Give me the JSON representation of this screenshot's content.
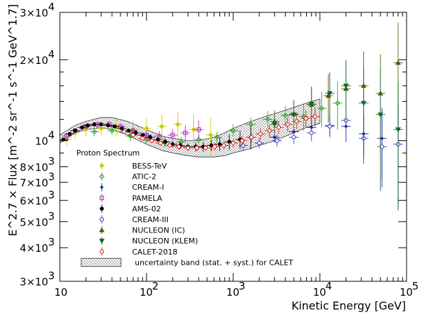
{
  "chart_data": {
    "type": "scatter",
    "title": "",
    "xlabel": "Kinetic Energy [GeV]",
    "ylabel": "E^2.7 × Flux [m^-2 sr^-1 s^-1 GeV^1.7]",
    "xscale": "log",
    "yscale": "log",
    "xlim": [
      10,
      100000
    ],
    "ylim": [
      3000,
      30000
    ],
    "x_ticks": [
      {
        "value": 10,
        "base": "10",
        "exp": ""
      },
      {
        "value": 100,
        "base": "10",
        "exp": "2"
      },
      {
        "value": 1000,
        "base": "10",
        "exp": "3"
      },
      {
        "value": 10000,
        "base": "10",
        "exp": "4"
      },
      {
        "value": 100000,
        "base": "10",
        "exp": "5"
      }
    ],
    "y_ticks": [
      {
        "value": 3000,
        "label": "3×10",
        "exp": "3"
      },
      {
        "value": 4000,
        "label": "4×10",
        "exp": "3"
      },
      {
        "value": 5000,
        "label": "5×10",
        "exp": "3"
      },
      {
        "value": 6000,
        "label": "6×10",
        "exp": "3"
      },
      {
        "value": 7000,
        "label": "7×10",
        "exp": "3"
      },
      {
        "value": 8000,
        "label": "8×10",
        "exp": "3"
      },
      {
        "value": 10000,
        "label": "10",
        "exp": "4"
      },
      {
        "value": 20000,
        "label": "2×10",
        "exp": "4"
      },
      {
        "value": 30000,
        "label": "3×10",
        "exp": "4"
      }
    ],
    "legend_title": "Proton Spectrum",
    "legend_position": "bottom-left",
    "band": {
      "name": "uncertainty band (stat. + syst.) for CALET",
      "x": [
        10,
        15,
        20,
        30,
        40,
        60,
        100,
        150,
        200,
        300,
        400,
        600,
        800,
        1000,
        1500,
        2000,
        3000,
        5000,
        7000,
        10000
      ],
      "low": [
        9800,
        10700,
        11000,
        11200,
        11000,
        10500,
        9700,
        9200,
        9000,
        8800,
        8700,
        8700,
        8800,
        9000,
        9300,
        9600,
        10000,
        10700,
        11200,
        11600
      ],
      "high": [
        10500,
        11400,
        11800,
        12200,
        12200,
        11800,
        11000,
        10400,
        10200,
        10000,
        10000,
        10300,
        10700,
        11100,
        11700,
        12100,
        12600,
        13300,
        13800,
        14300
      ]
    },
    "series": [
      {
        "name": "BESS-TeV",
        "color": "#cccc00",
        "marker": "circle-filled",
        "points": [
          {
            "x": 12,
            "y": 10100,
            "err": 500
          },
          {
            "x": 15,
            "y": 10700,
            "err": 550
          },
          {
            "x": 20,
            "y": 11000,
            "err": 600
          },
          {
            "x": 30,
            "y": 11100,
            "err": 650
          },
          {
            "x": 45,
            "y": 11200,
            "err": 800
          },
          {
            "x": 70,
            "y": 11000,
            "err": 900
          },
          {
            "x": 100,
            "y": 11100,
            "err": 1000
          },
          {
            "x": 150,
            "y": 11300,
            "err": 1200
          },
          {
            "x": 230,
            "y": 11500,
            "err": 1300
          },
          {
            "x": 350,
            "y": 11000,
            "err": 1500
          },
          {
            "x": 550,
            "y": 10500,
            "err": 1700
          }
        ]
      },
      {
        "name": "ATIC-2",
        "color": "#2e9e2e",
        "marker": "diamond-open",
        "points": [
          {
            "x": 25,
            "y": 10800,
            "err": 400
          },
          {
            "x": 40,
            "y": 10900,
            "err": 400
          },
          {
            "x": 65,
            "y": 10400,
            "err": 400
          },
          {
            "x": 100,
            "y": 10100,
            "err": 400
          },
          {
            "x": 160,
            "y": 9900,
            "err": 400
          },
          {
            "x": 250,
            "y": 9900,
            "err": 400
          },
          {
            "x": 400,
            "y": 10100,
            "err": 450
          },
          {
            "x": 650,
            "y": 10300,
            "err": 500
          },
          {
            "x": 1000,
            "y": 10900,
            "err": 600
          },
          {
            "x": 1600,
            "y": 11500,
            "err": 700
          },
          {
            "x": 2500,
            "y": 12000,
            "err": 900
          },
          {
            "x": 4000,
            "y": 12400,
            "err": 1100
          },
          {
            "x": 6500,
            "y": 12300,
            "err": 1400
          },
          {
            "x": 10500,
            "y": 13200,
            "err": 2000
          },
          {
            "x": 16000,
            "y": 13800,
            "err": 2800
          }
        ]
      },
      {
        "name": "CREAM-I",
        "color": "#1a1aa6",
        "marker": "circle-small",
        "points": [
          {
            "x": 3000,
            "y": 10300,
            "err": 450
          },
          {
            "x": 5000,
            "y": 10800,
            "err": 550
          },
          {
            "x": 8000,
            "y": 11200,
            "err": 700
          },
          {
            "x": 13000,
            "y": 11400,
            "err": 1000
          },
          {
            "x": 20000,
            "y": 11300,
            "err": 1400
          },
          {
            "x": 32000,
            "y": 10600,
            "err": 2000
          },
          {
            "x": 52000,
            "y": 10200,
            "err": 3000
          }
        ]
      },
      {
        "name": "PAMELA",
        "color": "#b030b0",
        "marker": "square-open",
        "points": [
          {
            "x": 12,
            "y": 10400,
            "err": 250
          },
          {
            "x": 15,
            "y": 10900,
            "err": 250
          },
          {
            "x": 20,
            "y": 11300,
            "err": 250
          },
          {
            "x": 27,
            "y": 11500,
            "err": 300
          },
          {
            "x": 37,
            "y": 11500,
            "err": 300
          },
          {
            "x": 50,
            "y": 11300,
            "err": 300
          },
          {
            "x": 70,
            "y": 10900,
            "err": 350
          },
          {
            "x": 100,
            "y": 10500,
            "err": 400
          },
          {
            "x": 140,
            "y": 10400,
            "err": 450
          },
          {
            "x": 200,
            "y": 10500,
            "err": 550
          },
          {
            "x": 280,
            "y": 10700,
            "err": 700
          },
          {
            "x": 400,
            "y": 11000,
            "err": 900
          }
        ]
      },
      {
        "name": "AMS-02",
        "color": "#000000",
        "marker": "circle-filled",
        "points": [
          {
            "x": 11,
            "y": 10100,
            "err": 150
          },
          {
            "x": 13,
            "y": 10600,
            "err": 150
          },
          {
            "x": 15,
            "y": 10900,
            "err": 150
          },
          {
            "x": 18,
            "y": 11200,
            "err": 150
          },
          {
            "x": 21,
            "y": 11400,
            "err": 150
          },
          {
            "x": 25,
            "y": 11500,
            "err": 150
          },
          {
            "x": 30,
            "y": 11500,
            "err": 150
          },
          {
            "x": 36,
            "y": 11400,
            "err": 150
          },
          {
            "x": 43,
            "y": 11300,
            "err": 150
          },
          {
            "x": 52,
            "y": 11100,
            "err": 150
          },
          {
            "x": 62,
            "y": 10900,
            "err": 150
          },
          {
            "x": 75,
            "y": 10700,
            "err": 200
          },
          {
            "x": 90,
            "y": 10500,
            "err": 200
          },
          {
            "x": 110,
            "y": 10300,
            "err": 200
          },
          {
            "x": 135,
            "y": 10100,
            "err": 200
          },
          {
            "x": 165,
            "y": 9900,
            "err": 250
          },
          {
            "x": 200,
            "y": 9700,
            "err": 250
          },
          {
            "x": 245,
            "y": 9600,
            "err": 300
          },
          {
            "x": 300,
            "y": 9500,
            "err": 300
          },
          {
            "x": 370,
            "y": 9500,
            "err": 350
          },
          {
            "x": 450,
            "y": 9500,
            "err": 400
          },
          {
            "x": 560,
            "y": 9600,
            "err": 450
          },
          {
            "x": 700,
            "y": 9700,
            "err": 550
          },
          {
            "x": 900,
            "y": 9900,
            "err": 650
          },
          {
            "x": 1200,
            "y": 10100,
            "err": 800
          },
          {
            "x": 1600,
            "y": 10300,
            "err": 1000
          }
        ]
      },
      {
        "name": "CREAM-III",
        "color": "#3838c8",
        "marker": "circle-open",
        "points": [
          {
            "x": 1300,
            "y": 9600,
            "err": 400
          },
          {
            "x": 2000,
            "y": 9800,
            "err": 450
          },
          {
            "x": 3200,
            "y": 10000,
            "err": 500
          },
          {
            "x": 5000,
            "y": 10300,
            "err": 600
          },
          {
            "x": 8000,
            "y": 10700,
            "err": 750
          },
          {
            "x": 13000,
            "y": 11300,
            "err": 1000
          },
          {
            "x": 20000,
            "y": 11900,
            "err": 1400
          },
          {
            "x": 32000,
            "y": 10200,
            "err": 2000
          },
          {
            "x": 52000,
            "y": 9500,
            "err": 2800
          },
          {
            "x": 80000,
            "y": 9700,
            "err": 4000
          }
        ]
      },
      {
        "name": "NUCLEON (IC)",
        "color": "#5a5a10",
        "marker": "triangle-up",
        "points": [
          {
            "x": 3000,
            "y": 11800,
            "err": 1200
          },
          {
            "x": 5000,
            "y": 12600,
            "err": 1600
          },
          {
            "x": 8000,
            "y": 13600,
            "err": 2200
          },
          {
            "x": 12500,
            "y": 14700,
            "err": 3000
          },
          {
            "x": 20000,
            "y": 15600,
            "err": 4000
          },
          {
            "x": 32000,
            "y": 16000,
            "err": 5500
          },
          {
            "x": 50000,
            "y": 15000,
            "err": 6000
          },
          {
            "x": 80000,
            "y": 19500,
            "err": 8000
          }
        ]
      },
      {
        "name": "NUCLEON (KLEM)",
        "color": "#0a6a2a",
        "marker": "triangle-down",
        "points": [
          {
            "x": 3000,
            "y": 11500,
            "err": 1000
          },
          {
            "x": 5000,
            "y": 12500,
            "err": 1500
          },
          {
            "x": 8000,
            "y": 13700,
            "err": 2200
          },
          {
            "x": 13000,
            "y": 15000,
            "err": 3000
          },
          {
            "x": 20000,
            "y": 16000,
            "err": 4000
          },
          {
            "x": 32000,
            "y": 13800,
            "err": 5000
          },
          {
            "x": 50000,
            "y": 12500,
            "err": 6000
          },
          {
            "x": 80000,
            "y": 11000,
            "err": 5500
          }
        ]
      },
      {
        "name": "CALET-2018",
        "color": "#e01818",
        "marker": "circle-open",
        "points": [
          {
            "x": 55,
            "y": 10800,
            "err": 200
          },
          {
            "x": 70,
            "y": 10500,
            "err": 200
          },
          {
            "x": 90,
            "y": 10200,
            "err": 200
          },
          {
            "x": 115,
            "y": 10000,
            "err": 200
          },
          {
            "x": 145,
            "y": 9800,
            "err": 200
          },
          {
            "x": 185,
            "y": 9600,
            "err": 200
          },
          {
            "x": 235,
            "y": 9500,
            "err": 220
          },
          {
            "x": 300,
            "y": 9400,
            "err": 240
          },
          {
            "x": 380,
            "y": 9400,
            "err": 260
          },
          {
            "x": 480,
            "y": 9400,
            "err": 280
          },
          {
            "x": 610,
            "y": 9500,
            "err": 300
          },
          {
            "x": 780,
            "y": 9600,
            "err": 330
          },
          {
            "x": 1000,
            "y": 9800,
            "err": 360
          },
          {
            "x": 1270,
            "y": 10000,
            "err": 400
          },
          {
            "x": 1620,
            "y": 10300,
            "err": 450
          },
          {
            "x": 2060,
            "y": 10600,
            "err": 500
          },
          {
            "x": 2620,
            "y": 10900,
            "err": 560
          },
          {
            "x": 3340,
            "y": 11200,
            "err": 620
          },
          {
            "x": 4250,
            "y": 11500,
            "err": 700
          },
          {
            "x": 5400,
            "y": 11800,
            "err": 800
          },
          {
            "x": 6900,
            "y": 12100,
            "err": 900
          },
          {
            "x": 8800,
            "y": 12300,
            "err": 1000
          }
        ]
      }
    ]
  }
}
